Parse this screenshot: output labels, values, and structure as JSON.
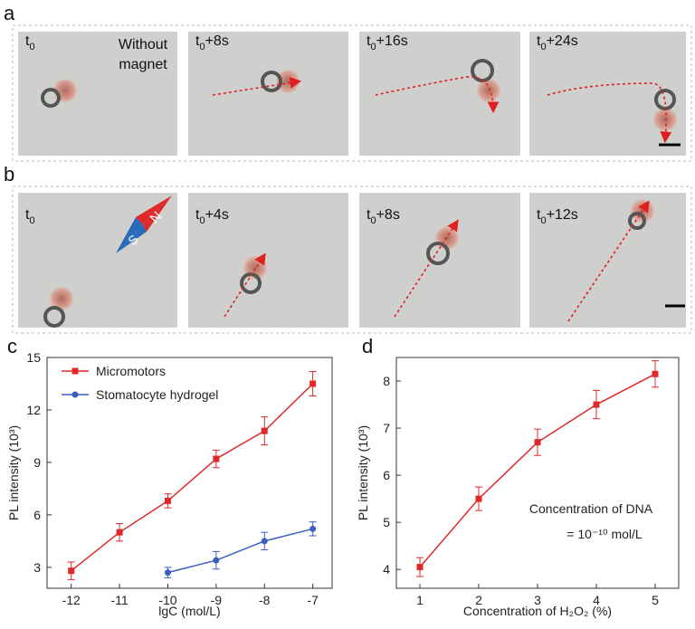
{
  "panels": [
    {
      "label": "a",
      "frames": [
        {
          "t": "t",
          "sub": "0",
          "rest": ""
        },
        {
          "t": "t",
          "sub": "0",
          "rest": "+8s"
        },
        {
          "t": "t",
          "sub": "0",
          "rest": "+16s"
        },
        {
          "t": "t",
          "sub": "0",
          "rest": "+24s"
        }
      ],
      "note": [
        "Without",
        "magnet"
      ]
    },
    {
      "label": "b",
      "frames": [
        {
          "t": "t",
          "sub": "0",
          "rest": ""
        },
        {
          "t": "t",
          "sub": "0",
          "rest": "+4s"
        },
        {
          "t": "t",
          "sub": "0",
          "rest": "+8s"
        },
        {
          "t": "t",
          "sub": "0",
          "rest": "+12s"
        }
      ],
      "magnet": {
        "s": "S",
        "n": "N"
      }
    }
  ],
  "chart_data": [
    {
      "type": "line",
      "panel": "c",
      "xlabel": "lgC (mol/L)",
      "ylabel": "PL intensity (10³)",
      "xlim": [
        -12.5,
        -6.6
      ],
      "xticks": [
        -12,
        -11,
        -10,
        -9,
        -8,
        -7
      ],
      "ylim": [
        1.8,
        15
      ],
      "yticks": [
        3,
        6,
        9,
        12,
        15
      ],
      "legend": "upper left",
      "series": [
        {
          "name": "Micromotors",
          "color": "#e02828",
          "marker": "square",
          "x": [
            -12,
            -11,
            -10,
            -9,
            -8,
            -7
          ],
          "values": [
            2.8,
            5.0,
            6.8,
            9.2,
            10.8,
            13.5
          ],
          "errors": [
            0.5,
            0.5,
            0.4,
            0.5,
            0.8,
            0.7
          ]
        },
        {
          "name": "Stomatocyte hydrogel",
          "color": "#3a5fbf",
          "marker": "circle",
          "x": [
            -10,
            -9,
            -8,
            -7
          ],
          "values": [
            2.7,
            3.4,
            4.5,
            5.2
          ],
          "errors": [
            0.3,
            0.5,
            0.5,
            0.4
          ]
        }
      ]
    },
    {
      "type": "line",
      "panel": "d",
      "xlabel": "Concentration of H₂O₂ (%)",
      "ylabel": "PL intensity (10³)",
      "xlim": [
        0.6,
        5.4
      ],
      "xticks": [
        1,
        2,
        3,
        4,
        5
      ],
      "ylim": [
        3.6,
        8.5
      ],
      "yticks": [
        4,
        5,
        6,
        7,
        8
      ],
      "annotations": [
        "Concentration of  DNA",
        "= 10⁻¹⁰ mol/L"
      ],
      "series": [
        {
          "color": "#e02828",
          "marker": "square",
          "x": [
            1,
            2,
            3,
            4,
            5
          ],
          "values": [
            4.05,
            5.5,
            6.7,
            7.5,
            8.15
          ],
          "errors": [
            0.2,
            0.25,
            0.28,
            0.3,
            0.28
          ]
        }
      ]
    }
  ]
}
